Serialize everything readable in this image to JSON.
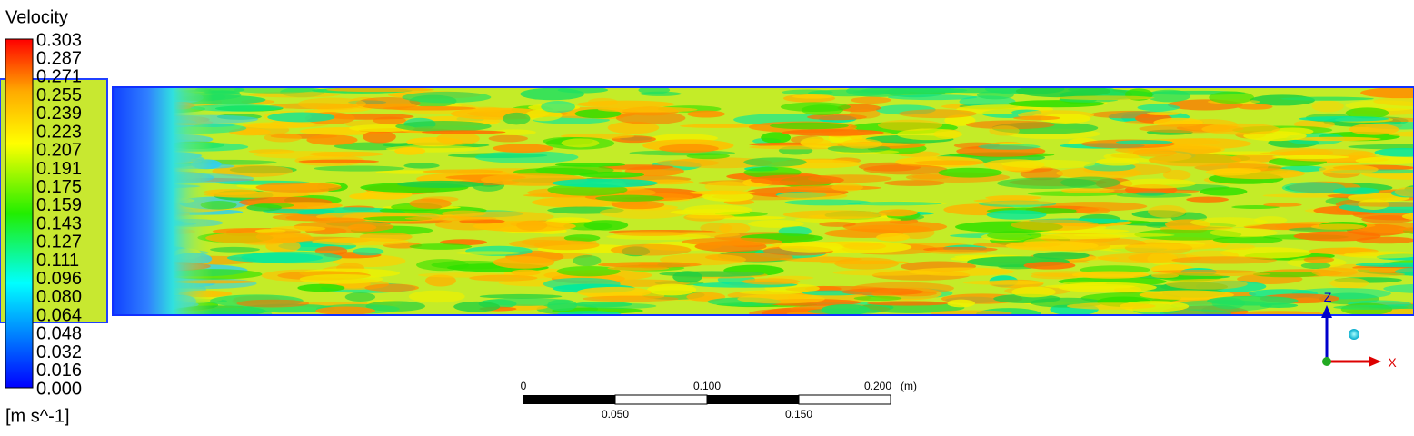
{
  "legend": {
    "title": "Velocity",
    "labels": [
      "0.303",
      "0.287",
      "0.271",
      "0.255",
      "0.239",
      "0.223",
      "0.207",
      "0.191",
      "0.175",
      "0.159",
      "0.143",
      "0.127",
      "0.111",
      "0.096",
      "0.080",
      "0.064",
      "0.048",
      "0.032",
      "0.016",
      "0.000"
    ],
    "unit": "[m s^-1]"
  },
  "scale_bar": {
    "top_labels": [
      "0",
      "0.100",
      "0.200"
    ],
    "unit": "(m)",
    "bottom_labels": [
      "0.050",
      "0.150"
    ]
  },
  "axes": {
    "z": "Z",
    "x": "X"
  }
}
